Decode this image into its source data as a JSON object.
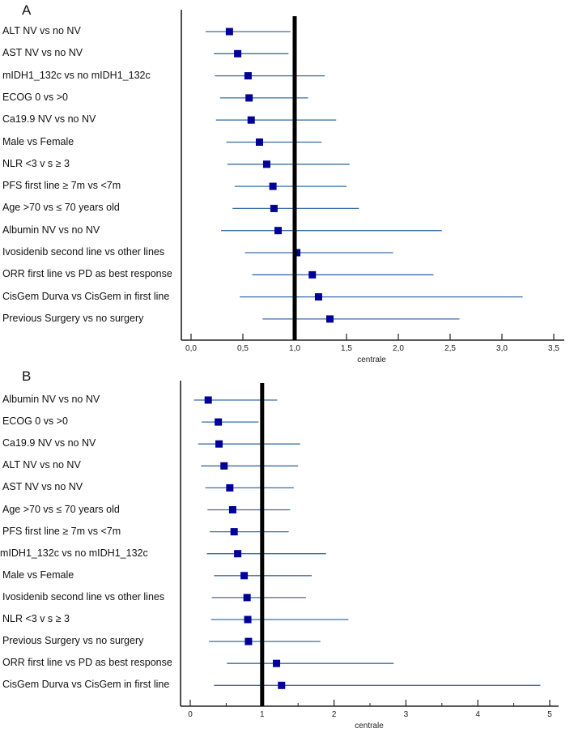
{
  "colors": {
    "marker": "#000099",
    "ci_line": "#3a6ea5",
    "reference": "#000000",
    "axis": "#222222"
  },
  "chart_data": [
    {
      "type": "forest",
      "panel": "A",
      "xlabel": "centrale",
      "xlim": [
        -0.05,
        3.6
      ],
      "xticks": [
        0,
        0.5,
        1.0,
        1.5,
        2.0,
        2.5,
        3.0,
        3.5
      ],
      "xtick_labels": [
        "0,0",
        "0,5",
        "1,0",
        "1,5",
        "2,0",
        "2,5",
        "3,0",
        "3,5"
      ],
      "reference": 1.0,
      "rows": [
        {
          "label": "ALT NV vs no NV",
          "est": 0.37,
          "lo": 0.14,
          "hi": 0.96
        },
        {
          "label": "AST NV vs no NV",
          "est": 0.45,
          "lo": 0.22,
          "hi": 0.94
        },
        {
          "label": "mIDH1_132c vs no mIDH1_132c",
          "est": 0.55,
          "lo": 0.23,
          "hi": 1.29
        },
        {
          "label": "ECOG 0 vs >0",
          "est": 0.56,
          "lo": 0.28,
          "hi": 1.13
        },
        {
          "label": "Ca19.9 NV vs no NV",
          "est": 0.58,
          "lo": 0.24,
          "hi": 1.4
        },
        {
          "label": "Male vs Female",
          "est": 0.66,
          "lo": 0.34,
          "hi": 1.26
        },
        {
          "label": "NLR <3 v s ≥ 3",
          "est": 0.73,
          "lo": 0.35,
          "hi": 1.53
        },
        {
          "label": "PFS first line ≥ 7m vs <7m",
          "est": 0.79,
          "lo": 0.42,
          "hi": 1.5
        },
        {
          "label": "Age >70 vs ≤ 70 years old",
          "est": 0.8,
          "lo": 0.4,
          "hi": 1.62
        },
        {
          "label": "Albumin NV vs no NV",
          "est": 0.84,
          "lo": 0.29,
          "hi": 2.42
        },
        {
          "label": "Ivosidenib second line vs other lines",
          "est": 1.02,
          "lo": 0.52,
          "hi": 1.95
        },
        {
          "label": "ORR first line vs PD as best response",
          "est": 1.17,
          "lo": 0.59,
          "hi": 2.34
        },
        {
          "label": "CisGem Durva  vs CisGem in first line",
          "est": 1.23,
          "lo": 0.47,
          "hi": 3.2
        },
        {
          "label": "Previous Surgery vs no surgery",
          "est": 1.34,
          "lo": 0.69,
          "hi": 2.59
        }
      ]
    },
    {
      "type": "forest",
      "panel": "B",
      "xlabel": "centrale",
      "xlim": [
        -0.13,
        5.2
      ],
      "xticks": [
        0,
        1,
        2,
        3,
        4,
        5
      ],
      "xtick_labels": [
        "0",
        "1",
        "2",
        "3",
        "4",
        "5"
      ],
      "minor_ticks": [
        0.5,
        1.5,
        2.5,
        3.5,
        4.5
      ],
      "reference": 1.0,
      "rows": [
        {
          "label": "Albumin NV vs no NV",
          "est": 0.25,
          "lo": 0.05,
          "hi": 1.21
        },
        {
          "label": "ECOG 0 vs >0",
          "est": 0.39,
          "lo": 0.16,
          "hi": 0.95
        },
        {
          "label": "Ca19.9 NV vs no NV",
          "est": 0.4,
          "lo": 0.11,
          "hi": 1.53
        },
        {
          "label": "ALT NV vs no NV",
          "est": 0.47,
          "lo": 0.15,
          "hi": 1.5
        },
        {
          "label": "AST NV vs no NV",
          "est": 0.55,
          "lo": 0.21,
          "hi": 1.44
        },
        {
          "label": "Age >70 vs ≤ 70 years old",
          "est": 0.59,
          "lo": 0.24,
          "hi": 1.39
        },
        {
          "label": "PFS first line ≥ 7m vs <7m",
          "est": 0.61,
          "lo": 0.27,
          "hi": 1.37
        },
        {
          "label": "mIDH1_132c vs no mIDH1_132c",
          "est": 0.66,
          "lo": 0.23,
          "hi": 1.89
        },
        {
          "label": "Male vs Female",
          "est": 0.75,
          "lo": 0.33,
          "hi": 1.69
        },
        {
          "label": "Ivosidenib second line vs other lines",
          "est": 0.79,
          "lo": 0.3,
          "hi": 1.61
        },
        {
          "label": "NLR <3 v s ≥ 3",
          "est": 0.8,
          "lo": 0.29,
          "hi": 2.2
        },
        {
          "label": "Previous Surgery vs no surgery",
          "est": 0.81,
          "lo": 0.26,
          "hi": 1.81
        },
        {
          "label": "ORR first line vs PD as best response",
          "est": 1.2,
          "lo": 0.51,
          "hi": 2.83
        },
        {
          "label": "CisGem Durva  vs CisGem in first line",
          "est": 1.27,
          "lo": 0.33,
          "hi": 4.87
        }
      ]
    }
  ]
}
